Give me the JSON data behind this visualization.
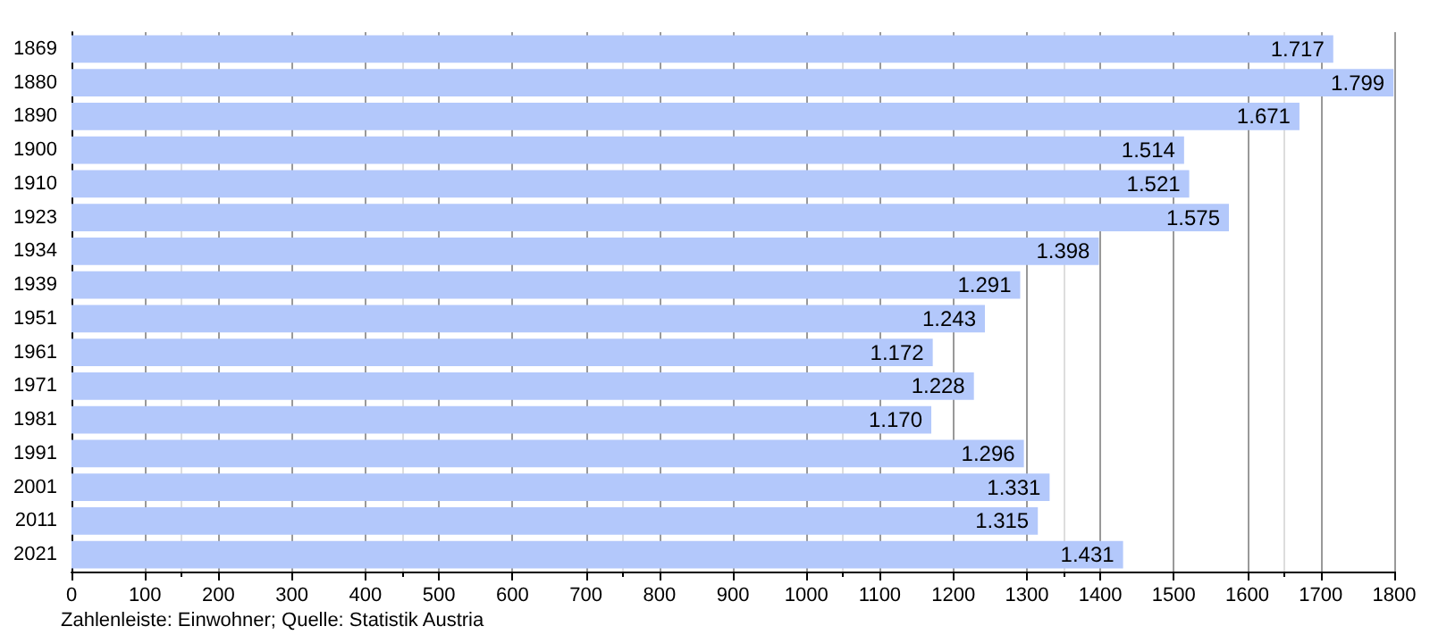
{
  "chart_data": {
    "type": "bar",
    "orientation": "horizontal",
    "categories": [
      "1869",
      "1880",
      "1890",
      "1900",
      "1910",
      "1923",
      "1934",
      "1939",
      "1951",
      "1961",
      "1971",
      "1981",
      "1991",
      "2001",
      "2011",
      "2021"
    ],
    "values": [
      1717,
      1799,
      1671,
      1514,
      1521,
      1575,
      1398,
      1291,
      1243,
      1172,
      1228,
      1170,
      1296,
      1331,
      1315,
      1431
    ],
    "value_labels": [
      "1.717",
      "1.799",
      "1.671",
      "1.514",
      "1.521",
      "1.575",
      "1.398",
      "1.291",
      "1.243",
      "1.172",
      "1.228",
      "1.170",
      "1.296",
      "1.331",
      "1.315",
      "1.431"
    ],
    "color": "#b3c8fb",
    "xlim": [
      0,
      1800
    ],
    "xticks": [
      0,
      100,
      200,
      300,
      400,
      500,
      600,
      700,
      800,
      900,
      1000,
      1100,
      1200,
      1300,
      1400,
      1500,
      1600,
      1700,
      1800
    ],
    "grid": "x",
    "annotations": [
      "Zahlenleiste: Einwohner; Quelle: Statistik Austria"
    ]
  }
}
